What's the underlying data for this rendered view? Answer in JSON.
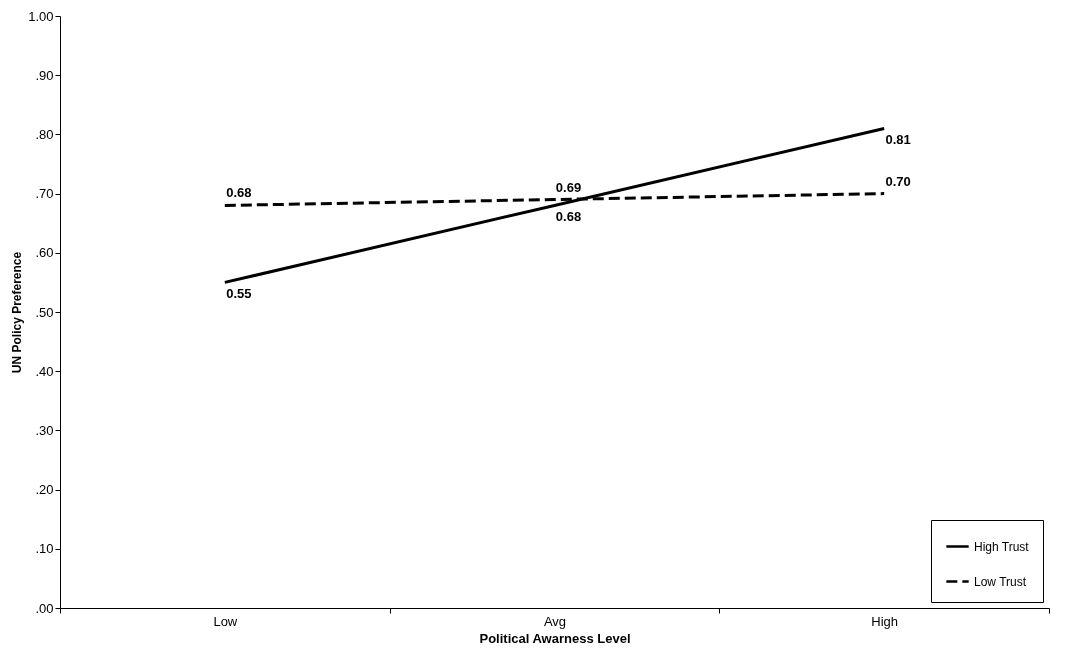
{
  "chart_data": {
    "type": "line",
    "xlabel": "Political Awarness Level",
    "ylabel": "UN Policy Preference",
    "categories": [
      "Low",
      "Avg",
      "High"
    ],
    "series": [
      {
        "name": "High Trust",
        "color": "#000000",
        "line_style": "solid",
        "values": [
          0.55,
          0.68,
          0.81
        ],
        "value_labels": [
          "0.55",
          "0.68",
          "0.81"
        ]
      },
      {
        "name": "Low Trust",
        "color": "#000000",
        "line_style": "dashed",
        "values": [
          0.68,
          0.69,
          0.7
        ],
        "value_labels": [
          "0.68",
          "0.69",
          "0.70"
        ]
      }
    ],
    "ylim": [
      0,
      1
    ],
    "yticks": [
      {
        "value": 0,
        "label": ".00"
      },
      {
        "value": 0.1,
        "label": ".10"
      },
      {
        "value": 0.2,
        "label": ".20"
      },
      {
        "value": 0.3,
        "label": ".30"
      },
      {
        "value": 0.4,
        "label": ".40"
      },
      {
        "value": 0.5,
        "label": ".50"
      },
      {
        "value": 0.6,
        "label": ".60"
      },
      {
        "value": 0.7,
        "label": ".70"
      },
      {
        "value": 0.8,
        "label": ".80"
      },
      {
        "value": 0.9,
        "label": ".90"
      },
      {
        "value": 1,
        "label": "1.00"
      }
    ],
    "grid": false,
    "legend": "bottom right"
  }
}
